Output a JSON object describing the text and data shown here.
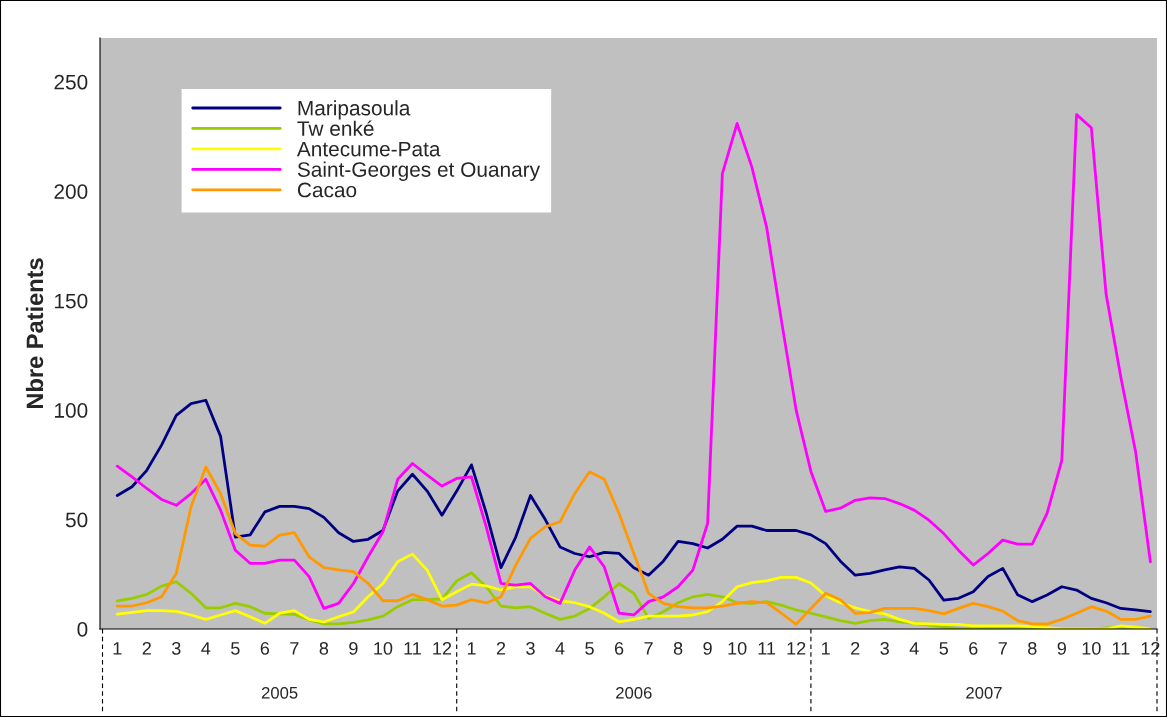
{
  "chart_data": {
    "type": "line",
    "ylabel": "Nbre Patients",
    "categories": [
      "1",
      null,
      "2",
      null,
      "3",
      null,
      "4",
      null,
      "5",
      null,
      "6",
      null,
      "7",
      null,
      "8",
      null,
      "9",
      null,
      "10",
      null,
      "11",
      null,
      "12",
      null,
      "1",
      null,
      "2",
      null,
      "3",
      null,
      "4",
      null,
      "5",
      null,
      "6",
      null,
      "7",
      null,
      "8",
      null,
      "9",
      null,
      "10",
      null,
      "11",
      null,
      "12",
      null,
      "1",
      null,
      "2",
      null,
      "3",
      null,
      "4",
      null,
      "5",
      null,
      "6",
      null,
      "7",
      null,
      "8",
      null,
      "9",
      null,
      "10",
      null,
      "11",
      null,
      "12"
    ],
    "ylim": [
      0,
      270
    ],
    "yticks": [
      0,
      50,
      100,
      150,
      200,
      250
    ],
    "annotations": [
      "2005",
      "2006",
      "2007"
    ],
    "legend": "top left",
    "grid": false,
    "marker": "none",
    "line_style": "solid",
    "series": [
      {
        "name": "Maripasoula",
        "color": "#000080",
        "values": [
          61,
          65,
          72.5,
          84,
          97.6,
          103,
          104.5,
          88,
          42,
          43,
          53.5,
          56,
          56,
          55,
          51,
          44,
          40,
          41,
          45,
          63,
          70.7,
          63,
          52,
          63,
          75,
          53,
          28,
          42,
          61,
          50,
          37.5,
          34.5,
          33,
          35,
          34.5,
          28,
          24.6,
          31,
          40,
          39,
          37,
          41,
          47,
          47,
          45,
          45,
          45,
          43,
          39,
          31,
          24.6,
          25.4,
          27,
          28.4,
          27.7,
          22.4,
          13.2,
          14,
          17,
          24,
          27.7,
          15.7,
          12.5,
          15.5,
          19.3,
          17.8,
          14,
          12,
          9.4,
          8.7,
          7.9
        ]
      },
      {
        "name": "Tw enké",
        "color": "#99cc00",
        "values": [
          12.8,
          14,
          15.8,
          19.6,
          21.6,
          16.3,
          9.7,
          9.7,
          11.7,
          10.2,
          7.2,
          6.9,
          6.7,
          4.2,
          2.3,
          2.3,
          3,
          4.2,
          5.9,
          10.2,
          13.4,
          13.4,
          13.7,
          22,
          25.7,
          19.3,
          10.5,
          9.7,
          10.2,
          7.2,
          4.4,
          5.9,
          9.4,
          14.7,
          20.8,
          16.3,
          4.9,
          7.9,
          12,
          14.7,
          15.8,
          14.7,
          12,
          11.7,
          12.5,
          10.9,
          8.7,
          7.2,
          5.5,
          3.8,
          2.6,
          3.8,
          4.4,
          3.3,
          2.6,
          1.8,
          0.8,
          0.3,
          0,
          0.3,
          0.8,
          0.8,
          0.5,
          0.3,
          0,
          0,
          0,
          0.5,
          1,
          0.5,
          0
        ]
      },
      {
        "name": "Antecume-Pata",
        "color": "#ffff00",
        "values": [
          6.8,
          7.6,
          8.4,
          8.4,
          8.1,
          6.4,
          4.4,
          6.4,
          8.4,
          5.6,
          2.6,
          7.2,
          8.4,
          4.4,
          3.2,
          5.6,
          7.8,
          14.7,
          20.8,
          30.7,
          34.2,
          26.9,
          13.4,
          17,
          20.5,
          19.7,
          17.8,
          19.3,
          19.3,
          15.2,
          12.9,
          12,
          10.2,
          7.2,
          3.3,
          4.4,
          5.9,
          5.9,
          5.9,
          6.4,
          7.9,
          12.5,
          19.3,
          21.2,
          22,
          23.6,
          23.6,
          21,
          15.2,
          12,
          9.7,
          7.9,
          6.9,
          4.4,
          2.6,
          2.3,
          2.1,
          2.1,
          1.4,
          1.4,
          1.4,
          1.4,
          1.1,
          0.6,
          0,
          0,
          0,
          0,
          1.4,
          0.8,
          0
        ]
      },
      {
        "name": "Saint-Georges et Ouanary",
        "color": "#ff00ff",
        "values": [
          74.4,
          69.5,
          64.2,
          59.2,
          56.5,
          61.9,
          68.4,
          54.3,
          36,
          30,
          30,
          31.5,
          31.5,
          23.9,
          9.4,
          11.7,
          20.8,
          33,
          44.4,
          68.4,
          75.6,
          70.3,
          65.3,
          68.8,
          69.5,
          46.7,
          20.8,
          20,
          20.8,
          14.7,
          11.7,
          26.9,
          37.5,
          28.4,
          7.2,
          6.4,
          12.5,
          14.7,
          19.3,
          26.9,
          48.2,
          208,
          231,
          211,
          183.5,
          141,
          100,
          72,
          53.7,
          55.2,
          58.8,
          59.9,
          59.6,
          57.3,
          54.3,
          49.7,
          43.6,
          36,
          29.2,
          34.5,
          40.6,
          38.8,
          38.8,
          52.8,
          77,
          235,
          229,
          153,
          115,
          81,
          30.7
        ]
      },
      {
        "name": "Cacao",
        "color": "#ff9900",
        "values": [
          10.5,
          10.5,
          12,
          14.7,
          25.4,
          55.8,
          74,
          61.9,
          43.6,
          38.3,
          37.8,
          42.9,
          44,
          33,
          28,
          27,
          26.2,
          20.8,
          12.9,
          12.9,
          15.8,
          13.4,
          10.5,
          10.9,
          13.4,
          11.9,
          14.7,
          29.2,
          41.4,
          46.7,
          49,
          61.9,
          71.8,
          68.4,
          52.8,
          34.5,
          16.3,
          11.7,
          10.2,
          9.7,
          9.7,
          10.5,
          11.7,
          12.5,
          12,
          7.2,
          2.1,
          9.4,
          16.3,
          13.4,
          7.2,
          7.5,
          9.4,
          9.4,
          9.4,
          8.4,
          6.9,
          9.4,
          11.7,
          10.2,
          8.2,
          3.8,
          2.3,
          2.3,
          4.4,
          7.2,
          10.2,
          8.2,
          4.4,
          4.4,
          5.9
        ]
      }
    ]
  }
}
